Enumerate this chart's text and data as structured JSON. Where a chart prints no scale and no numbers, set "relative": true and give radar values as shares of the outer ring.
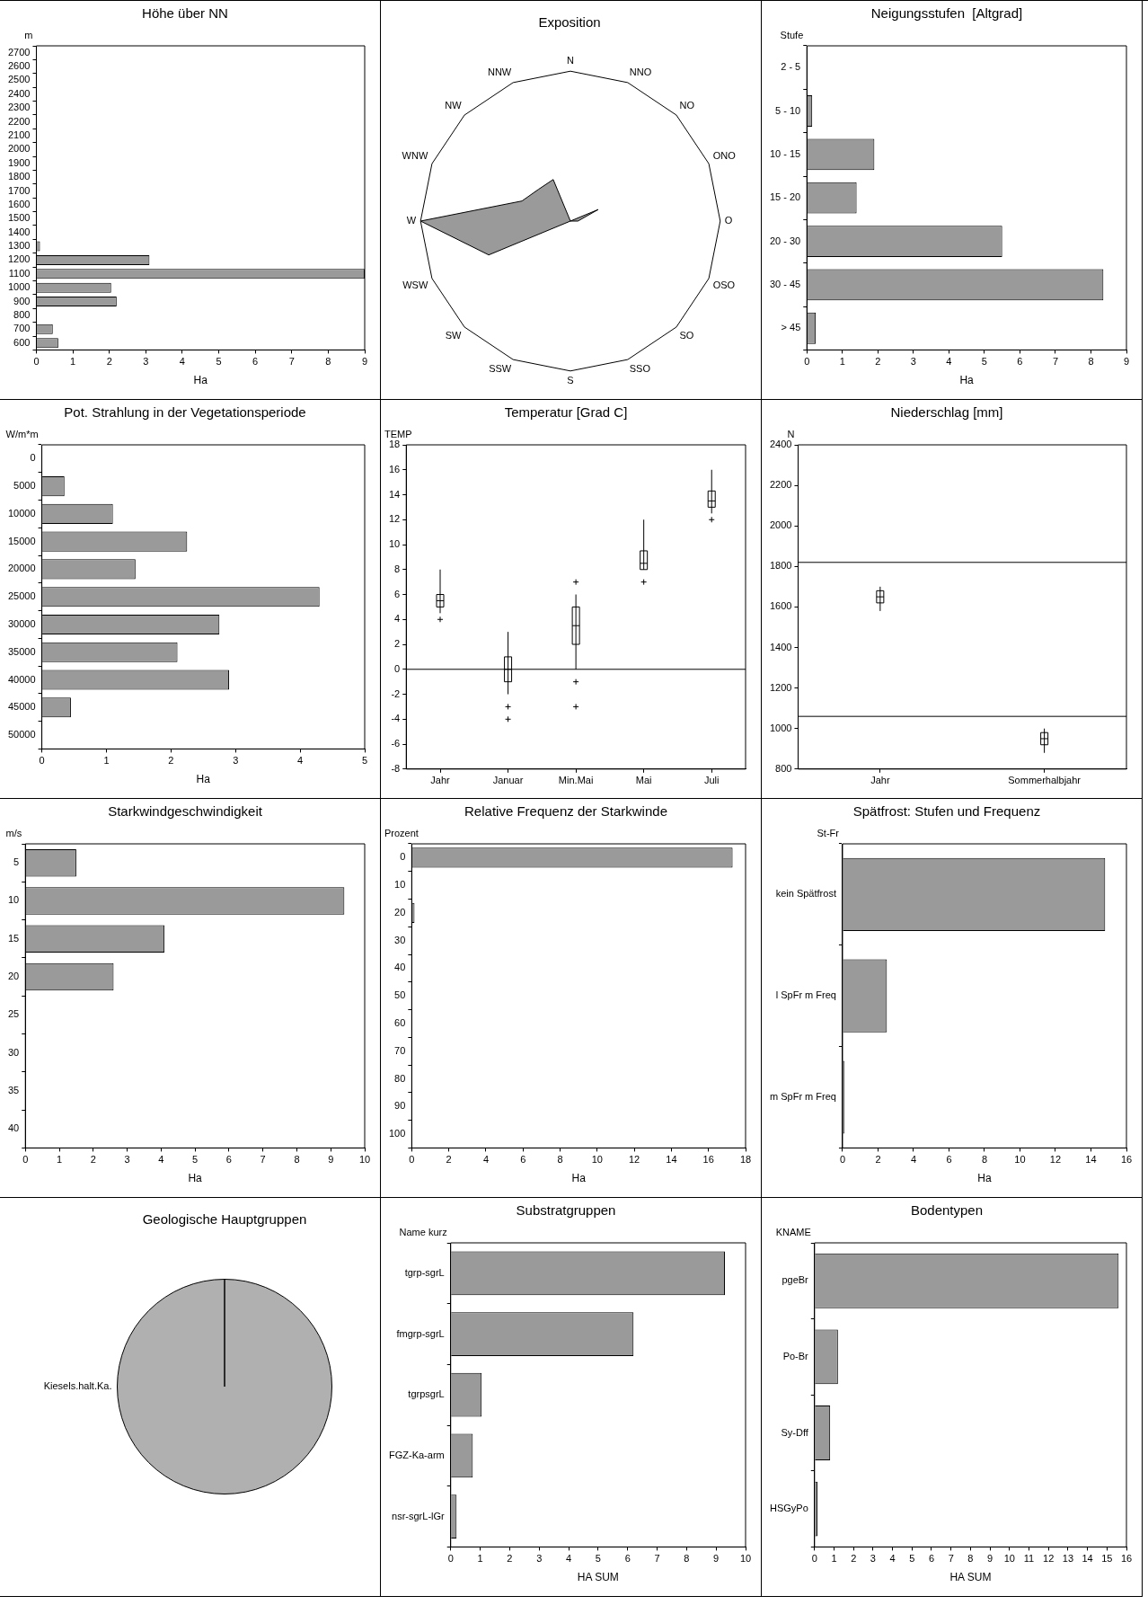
{
  "chart_data": [
    {
      "type": "bar",
      "orientation": "horizontal",
      "title": "Höhe über NN",
      "ylabel": "m",
      "xlabel": "Ha",
      "color": "#9a9a9a",
      "categories": [
        "2700",
        "2600",
        "2500",
        "2400",
        "2300",
        "2200",
        "2100",
        "2000",
        "1900",
        "1800",
        "1700",
        "1600",
        "1500",
        "1400",
        "1300",
        "1200",
        "1100",
        "1000",
        "900",
        "800",
        "700",
        "600"
      ],
      "values": [
        0,
        0,
        0,
        0,
        0,
        0,
        0,
        0,
        0,
        0,
        0,
        0,
        0,
        0,
        0.1,
        3.1,
        9,
        2.05,
        2.2,
        0,
        0.45,
        0.6
      ],
      "xlim": [
        0,
        9
      ],
      "xticks": [
        0,
        1,
        2,
        3,
        4,
        5,
        6,
        7,
        8,
        9
      ]
    },
    {
      "type": "radar",
      "title": "Exposition",
      "relative": true,
      "color": "#9a9a9a",
      "categories": [
        "N",
        "NNO",
        "NO",
        "ONO",
        "O",
        "OSO",
        "SO",
        "SSO",
        "S",
        "SSW",
        "SW",
        "WSW",
        "W",
        "WNW",
        "NW",
        "NNW"
      ],
      "values": [
        0,
        0,
        0,
        0.2,
        0.05,
        0,
        0,
        0,
        0,
        0,
        0,
        0.59,
        1,
        0.35,
        0.3,
        0.3
      ]
    },
    {
      "type": "bar",
      "orientation": "horizontal",
      "title": "Neigungsstufen  [Altgrad]",
      "ylabel": "Stufe",
      "xlabel": "Ha",
      "color": "#9a9a9a",
      "categories": [
        "2 - 5",
        "5 - 10",
        "10 - 15",
        "15 - 20",
        "20 - 30",
        "30 - 45",
        "> 45"
      ],
      "values": [
        0.02,
        0.15,
        1.9,
        1.4,
        5.5,
        8.35,
        0.25
      ],
      "xlim": [
        0,
        9
      ],
      "xticks": [
        0,
        1,
        2,
        3,
        4,
        5,
        6,
        7,
        8,
        9
      ]
    },
    {
      "type": "bar",
      "orientation": "horizontal",
      "title": "Pot. Strahlung in der Vegetationsperiode",
      "ylabel": "W/m*m",
      "xlabel": "Ha",
      "color": "#9a9a9a",
      "categories": [
        "0",
        "5000",
        "10000",
        "15000",
        "20000",
        "25000",
        "30000",
        "35000",
        "40000",
        "45000",
        "50000"
      ],
      "values": [
        0,
        0.35,
        1.1,
        2.25,
        1.45,
        4.3,
        2.75,
        2.1,
        2.9,
        0.45,
        0
      ],
      "xlim": [
        0,
        5
      ],
      "xticks": [
        0,
        1,
        2,
        3,
        4,
        5
      ]
    },
    {
      "type": "box",
      "title": "Temperatur [Grad C]",
      "ylabel": "TEMP",
      "color": "#000000",
      "marker": "cross",
      "categories": [
        "Jahr",
        "Januar",
        "Min.Mai",
        "Mai",
        "Juli"
      ],
      "boxes": [
        {
          "low": 4.5,
          "q1": 5,
          "median": 5.5,
          "q3": 6,
          "high": 8,
          "outliers": [
            4
          ]
        },
        {
          "low": -2,
          "q1": -1,
          "median": 0,
          "q3": 1,
          "high": 3,
          "outliers": [
            -3,
            -4
          ]
        },
        {
          "low": 0,
          "q1": 2,
          "median": 3.5,
          "q3": 5,
          "high": 6,
          "outliers": [
            7,
            -1,
            -3
          ]
        },
        {
          "low": 8,
          "q1": 8,
          "median": 8.5,
          "q3": 9.5,
          "high": 12,
          "outliers": [
            7
          ]
        },
        {
          "low": 12.5,
          "q1": 13,
          "median": 13.5,
          "q3": 14.3,
          "high": 16,
          "outliers": [
            12
          ]
        }
      ],
      "ylim": [
        -8,
        18
      ],
      "yticks": [
        -8,
        -6,
        -4,
        -2,
        0,
        2,
        4,
        6,
        8,
        10,
        12,
        14,
        16,
        18
      ],
      "ref_lines": [
        {
          "axis": "y",
          "value": 0
        }
      ]
    },
    {
      "type": "box",
      "title": "Niederschlag [mm]",
      "ylabel": "N",
      "color": "#000000",
      "categories": [
        "Jahr",
        "Sommerhalbjahr"
      ],
      "boxes": [
        {
          "low": 1580,
          "q1": 1620,
          "median": 1650,
          "q3": 1680,
          "high": 1700
        },
        {
          "low": 880,
          "q1": 920,
          "median": 950,
          "q3": 980,
          "high": 1000
        }
      ],
      "ylim": [
        800,
        2400
      ],
      "yticks": [
        800,
        1000,
        1200,
        1400,
        1600,
        1800,
        2000,
        2200,
        2400
      ],
      "ref_lines": [
        {
          "axis": "y",
          "value": 1820
        },
        {
          "axis": "y",
          "value": 1060
        }
      ]
    },
    {
      "type": "bar",
      "orientation": "horizontal",
      "title": "Starkwindgeschwindigkeit",
      "ylabel": "m/s",
      "xlabel": "Ha",
      "color": "#9a9a9a",
      "categories": [
        "5",
        "10",
        "15",
        "20",
        "25",
        "30",
        "35",
        "40"
      ],
      "values": [
        1.5,
        9.4,
        4.1,
        2.6,
        0,
        0,
        0,
        0
      ],
      "xlim": [
        0,
        10
      ],
      "xticks": [
        0,
        1,
        2,
        3,
        4,
        5,
        6,
        7,
        8,
        9,
        10
      ]
    },
    {
      "type": "bar",
      "orientation": "horizontal",
      "title": "Relative Frequenz der Starkwinde",
      "ylabel": "Prozent",
      "xlabel": "Ha",
      "color": "#9a9a9a",
      "categories": [
        "0",
        "10",
        "20",
        "30",
        "40",
        "50",
        "60",
        "70",
        "80",
        "90",
        "100"
      ],
      "values": [
        17.3,
        0,
        0.15,
        0,
        0,
        0,
        0,
        0,
        0,
        0,
        0
      ],
      "xlim": [
        0,
        18
      ],
      "xticks": [
        0,
        2,
        4,
        6,
        8,
        10,
        12,
        14,
        16,
        18
      ]
    },
    {
      "type": "bar",
      "orientation": "horizontal",
      "title": "Spätfrost: Stufen und Frequenz",
      "ylabel": "St-Fr",
      "xlabel": "Ha",
      "color": "#9a9a9a",
      "categories": [
        "kein Spätfrost",
        "l SpFr m Freq",
        "m SpFr m Freq"
      ],
      "values": [
        14.8,
        2.5,
        0.1
      ],
      "xlim": [
        0,
        16
      ],
      "xticks": [
        0,
        2,
        4,
        6,
        8,
        10,
        12,
        14,
        16
      ]
    },
    {
      "type": "pie",
      "title": "Geologische Hauptgruppen",
      "categories": [
        "Kiesels.halt.Ka."
      ],
      "values": [
        100
      ],
      "colors": [
        "#b0b0b0"
      ]
    },
    {
      "type": "bar",
      "orientation": "horizontal",
      "title": "Substratgruppen",
      "ylabel": "Name kurz",
      "xlabel": "HA SUM",
      "color": "#9a9a9a",
      "categories": [
        "tgrp-sgrL",
        "fmgrp-sgrL",
        "tgrpsgrL",
        "FGZ-Ka-arm",
        "nsr-sgrL-lGr"
      ],
      "values": [
        9.3,
        6.2,
        1.05,
        0.75,
        0.2
      ],
      "xlim": [
        0,
        10
      ],
      "xticks": [
        0,
        1,
        2,
        3,
        4,
        5,
        6,
        7,
        8,
        9,
        10
      ]
    },
    {
      "type": "bar",
      "orientation": "horizontal",
      "title": "Bodentypen",
      "ylabel": "KNAME",
      "xlabel": "HA SUM",
      "color": "#9a9a9a",
      "categories": [
        "pgeBr",
        "Po-Br",
        "Sy-Dff",
        "HSGyPo"
      ],
      "values": [
        15.6,
        1.2,
        0.8,
        0.15
      ],
      "xlim": [
        0,
        16
      ],
      "xticks": [
        0,
        1,
        2,
        3,
        4,
        5,
        6,
        7,
        8,
        9,
        10,
        11,
        12,
        13,
        14,
        15,
        16
      ]
    }
  ]
}
